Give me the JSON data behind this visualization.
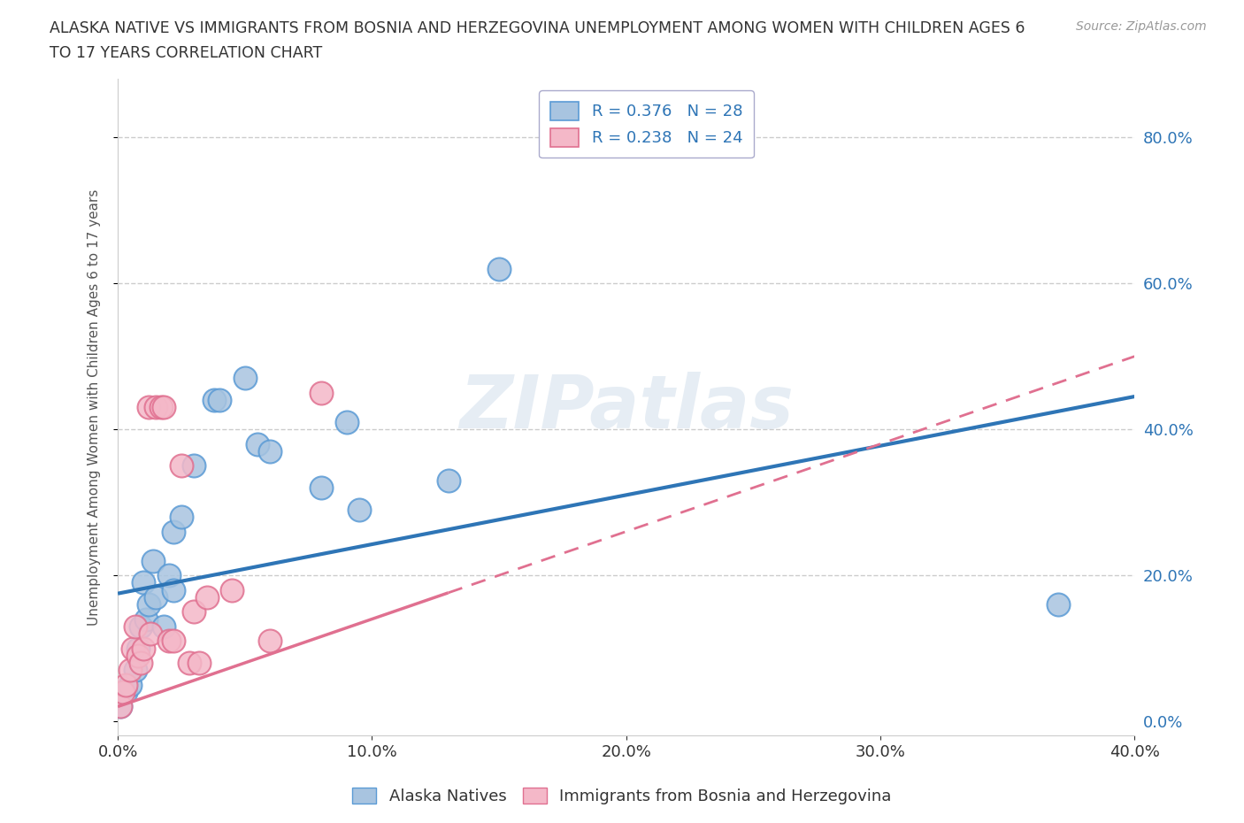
{
  "title_line1": "ALASKA NATIVE VS IMMIGRANTS FROM BOSNIA AND HERZEGOVINA UNEMPLOYMENT AMONG WOMEN WITH CHILDREN AGES 6",
  "title_line2": "TO 17 YEARS CORRELATION CHART",
  "source": "Source: ZipAtlas.com",
  "xlim": [
    0,
    0.4
  ],
  "ylim": [
    -0.02,
    0.88
  ],
  "watermark": "ZIPatlas",
  "legend1_label": "R = 0.376   N = 28",
  "legend2_label": "R = 0.238   N = 24",
  "legend_bottom_label1": "Alaska Natives",
  "legend_bottom_label2": "Immigrants from Bosnia and Herzegovina",
  "alaska_color": "#a8c4e0",
  "alaska_edge_color": "#5b9bd5",
  "bosnia_color": "#f4b8c8",
  "bosnia_edge_color": "#e07090",
  "alaska_line_color": "#2e75b6",
  "bosnia_line_color": "#e07090",
  "ylabel_color": "#2e75b6",
  "alaska_scatter_x": [
    0.001,
    0.003,
    0.005,
    0.007,
    0.008,
    0.009,
    0.01,
    0.011,
    0.012,
    0.014,
    0.015,
    0.018,
    0.02,
    0.022,
    0.022,
    0.025,
    0.03,
    0.038,
    0.04,
    0.05,
    0.055,
    0.06,
    0.08,
    0.09,
    0.095,
    0.13,
    0.15,
    0.37
  ],
  "alaska_scatter_y": [
    0.02,
    0.04,
    0.05,
    0.07,
    0.1,
    0.13,
    0.19,
    0.14,
    0.16,
    0.22,
    0.17,
    0.13,
    0.2,
    0.26,
    0.18,
    0.28,
    0.35,
    0.44,
    0.44,
    0.47,
    0.38,
    0.37,
    0.32,
    0.41,
    0.29,
    0.33,
    0.62,
    0.16
  ],
  "bosnia_scatter_x": [
    0.001,
    0.002,
    0.003,
    0.005,
    0.006,
    0.007,
    0.008,
    0.009,
    0.01,
    0.012,
    0.013,
    0.015,
    0.017,
    0.018,
    0.02,
    0.022,
    0.025,
    0.028,
    0.03,
    0.032,
    0.035,
    0.045,
    0.06,
    0.08
  ],
  "bosnia_scatter_y": [
    0.02,
    0.04,
    0.05,
    0.07,
    0.1,
    0.13,
    0.09,
    0.08,
    0.1,
    0.43,
    0.12,
    0.43,
    0.43,
    0.43,
    0.11,
    0.11,
    0.35,
    0.08,
    0.15,
    0.08,
    0.17,
    0.18,
    0.11,
    0.45
  ],
  "ylabel": "Unemployment Among Women with Children Ages 6 to 17 years"
}
